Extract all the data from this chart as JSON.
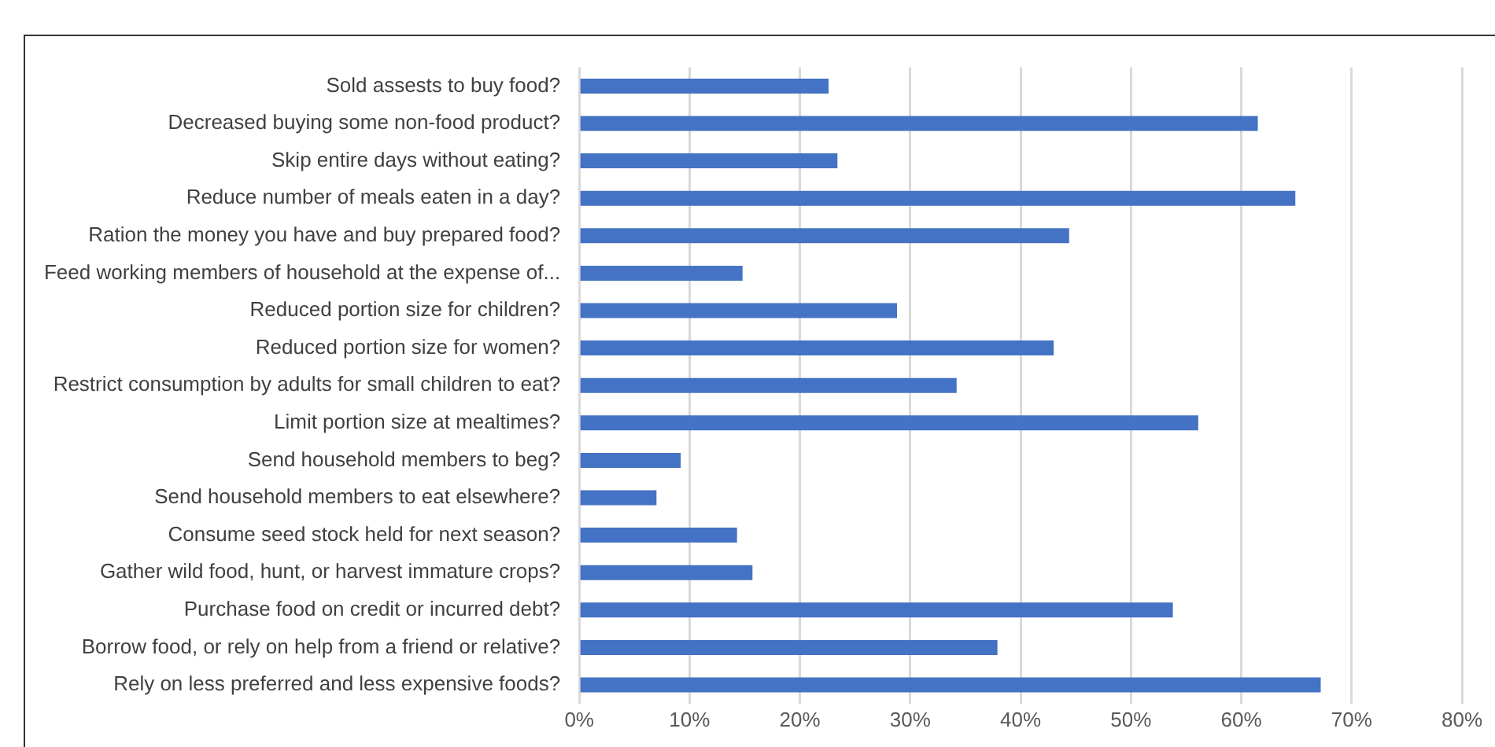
{
  "chart_data": {
    "type": "bar",
    "orientation": "horizontal",
    "categories": [
      "Sold assests to buy food?",
      "Decreased buying some non-food product?",
      "Skip entire days without eating?",
      "Reduce number of meals eaten in a day?",
      "Ration the money you have and buy prepared food?",
      "Feed working members of household at the expense of...",
      "Reduced portion size for children?",
      "Reduced portion size for women?",
      "Restrict consumption by adults for small children to eat?",
      "Limit portion size at mealtimes?",
      "Send household members to beg?",
      "Send household members to eat elsewhere?",
      "Consume seed stock held for next season?",
      "Gather wild food, hunt, or harvest immature crops?",
      "Purchase food on credit or incurred debt?",
      "Borrow food, or rely on help from a friend or relative?",
      "Rely on less preferred and less expensive foods?"
    ],
    "values": [
      22.6,
      61.5,
      23.4,
      64.9,
      44.4,
      14.8,
      28.8,
      43.0,
      34.2,
      56.1,
      9.2,
      7.0,
      14.3,
      15.7,
      53.8,
      37.9,
      67.2
    ],
    "color": "#4472c4",
    "xlim": [
      0,
      80
    ],
    "xticks": [
      {
        "value": 0,
        "label": "0%"
      },
      {
        "value": 10,
        "label": "10%"
      },
      {
        "value": 20,
        "label": "20%"
      },
      {
        "value": 30,
        "label": "30%"
      },
      {
        "value": 40,
        "label": "40%"
      },
      {
        "value": 50,
        "label": "50%"
      },
      {
        "value": 60,
        "label": "60%"
      },
      {
        "value": 70,
        "label": "70%"
      },
      {
        "value": 80,
        "label": "80%"
      }
    ],
    "grid": "x",
    "legend": false
  }
}
